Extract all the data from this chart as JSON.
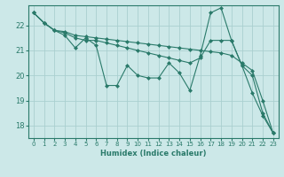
{
  "xlabel": "Humidex (Indice chaleur)",
  "bg_color": "#cce8e8",
  "grid_color": "#aacfcf",
  "line_color": "#2a7a6a",
  "xlim": [
    -0.5,
    23.5
  ],
  "ylim": [
    17.5,
    22.8
  ],
  "yticks": [
    18,
    19,
    20,
    21,
    22
  ],
  "xticks": [
    0,
    1,
    2,
    3,
    4,
    5,
    6,
    7,
    8,
    9,
    10,
    11,
    12,
    13,
    14,
    15,
    16,
    17,
    18,
    19,
    20,
    21,
    22,
    23
  ],
  "series": [
    [
      22.5,
      22.1,
      21.8,
      21.6,
      21.1,
      21.5,
      21.2,
      19.6,
      19.6,
      20.4,
      20.0,
      19.9,
      19.9,
      20.5,
      20.1,
      19.4,
      20.8,
      22.5,
      22.7,
      21.4,
      20.4,
      19.3,
      18.4,
      17.7
    ],
    [
      22.5,
      22.1,
      21.8,
      21.7,
      21.5,
      21.4,
      21.4,
      21.3,
      21.2,
      21.1,
      21.0,
      20.9,
      20.8,
      20.7,
      20.6,
      20.5,
      20.7,
      21.4,
      21.4,
      21.4,
      20.4,
      20.0,
      18.5,
      17.7
    ],
    [
      22.5,
      22.1,
      21.8,
      21.75,
      21.6,
      21.55,
      21.5,
      21.45,
      21.4,
      21.35,
      21.3,
      21.25,
      21.2,
      21.15,
      21.1,
      21.05,
      21.0,
      20.95,
      20.9,
      20.8,
      20.5,
      20.2,
      19.0,
      17.7
    ]
  ]
}
